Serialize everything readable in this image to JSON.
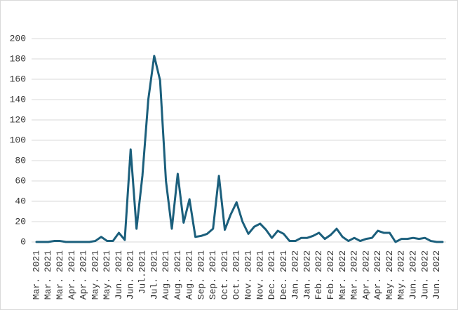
{
  "chart_data": {
    "type": "line",
    "categories": [
      "Mar. 2021",
      null,
      "Mar. 2021",
      null,
      "Mar. 2021",
      null,
      "Apr. 2021",
      null,
      "Apr. 2021",
      null,
      "May. 2021",
      null,
      "May. 2021",
      null,
      "Jun. 2021",
      null,
      "Jun. 2021",
      null,
      "Jul.2021",
      null,
      "Jul. 2021",
      null,
      "Aug. 2021",
      null,
      "Aug. 2021",
      null,
      "Aug. 2021",
      null,
      "Sep. 2021",
      null,
      "Sep. 2021",
      null,
      "Oct. 2021",
      null,
      "Oct. 2021",
      null,
      "Nov. 2021",
      null,
      "Nov. 2021",
      null,
      "Dec. 2021",
      null,
      "Dec. 2021",
      null,
      "Jan. 2022",
      null,
      "Jan. 2022",
      null,
      "Feb. 2022",
      null,
      "Feb. 2022",
      null,
      "Mar. 2022",
      null,
      "Mar. 2022",
      null,
      "Apr. 2022",
      null,
      "Apr. 2022",
      null,
      "May. 2022",
      null,
      "May. 2022",
      null,
      "Jun. 2022",
      null,
      "Jun. 2022",
      null,
      "Jun. 2022",
      null
    ],
    "values": [
      0,
      0,
      0,
      1,
      1,
      0,
      0,
      0,
      0,
      0,
      1,
      5,
      1,
      1,
      9,
      2,
      91,
      13,
      65,
      140,
      183,
      159,
      60,
      13,
      67,
      19,
      42,
      5,
      6,
      8,
      13,
      65,
      12,
      27,
      39,
      20,
      8,
      15,
      18,
      12,
      4,
      11,
      8,
      1,
      1,
      4,
      4,
      6,
      9,
      3,
      7,
      13,
      5,
      1,
      4,
      1,
      3,
      4,
      11,
      9,
      9,
      0,
      3,
      3,
      4,
      3,
      4,
      1,
      0,
      0
    ],
    "color": "#1b5f7c",
    "ylim": [
      0,
      200
    ],
    "yticks": [
      0,
      20,
      40,
      60,
      80,
      100,
      120,
      140,
      160,
      180,
      200
    ],
    "grid": true
  }
}
